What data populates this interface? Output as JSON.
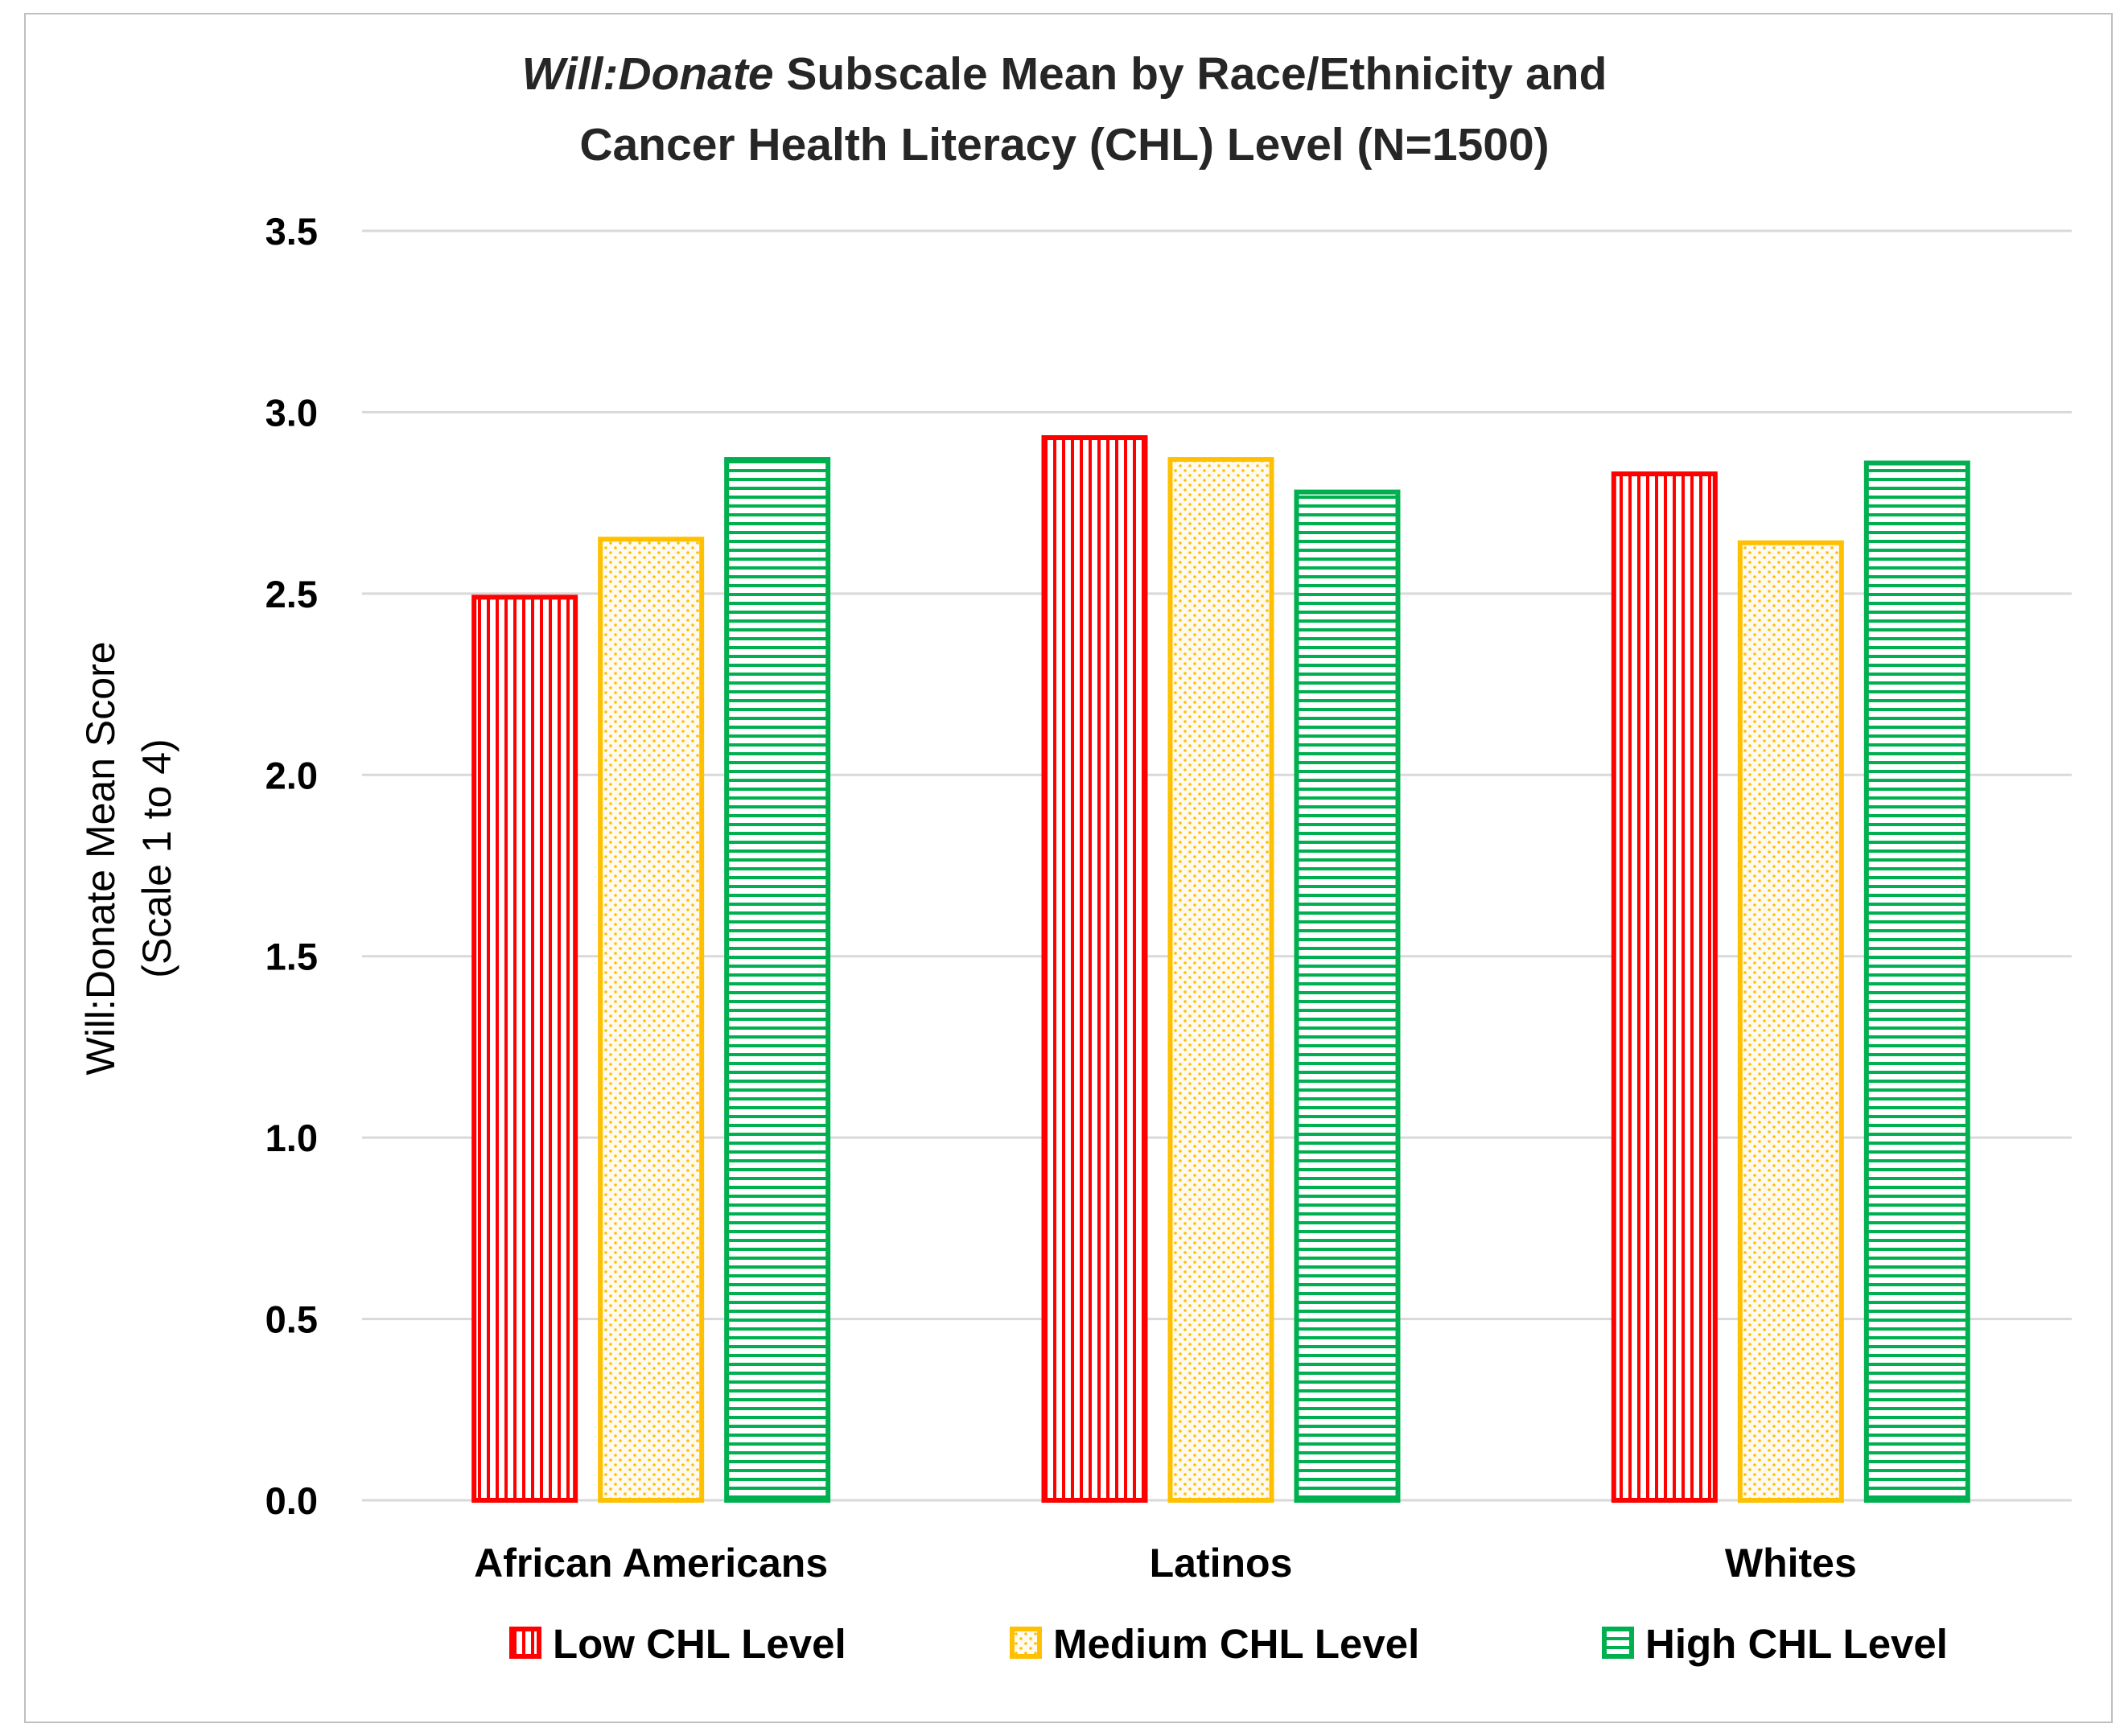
{
  "chart_data": {
    "type": "bar",
    "title_italic": "Will:Donate",
    "title_line1_rest": " Subscale Mean by Race/Ethnicity and",
    "title_line2": "Cancer Health Literacy (CHL) Level (N=1500)",
    "ylabel_line1": "Will:Donate Mean Score",
    "ylabel_line2": "(Scale 1 to 4)",
    "xlabel": "",
    "ylim": [
      0,
      3.5
    ],
    "yticks": [
      "0.0",
      "0.5",
      "1.0",
      "1.5",
      "2.0",
      "2.5",
      "3.0",
      "3.5"
    ],
    "grid": true,
    "legend_position": "bottom",
    "categories": [
      "African Americans",
      "Latinos",
      "Whites"
    ],
    "series": [
      {
        "name": "Low CHL Level",
        "values": [
          2.49,
          2.93,
          2.83
        ],
        "color": "#ff0000",
        "pattern": "vertical-lines"
      },
      {
        "name": "Medium CHL Level",
        "values": [
          2.65,
          2.87,
          2.64
        ],
        "color": "#ffc000",
        "pattern": "dots"
      },
      {
        "name": "High CHL Level",
        "values": [
          2.87,
          2.78,
          2.86
        ],
        "color": "#00b050",
        "pattern": "horizontal-lines"
      }
    ]
  }
}
